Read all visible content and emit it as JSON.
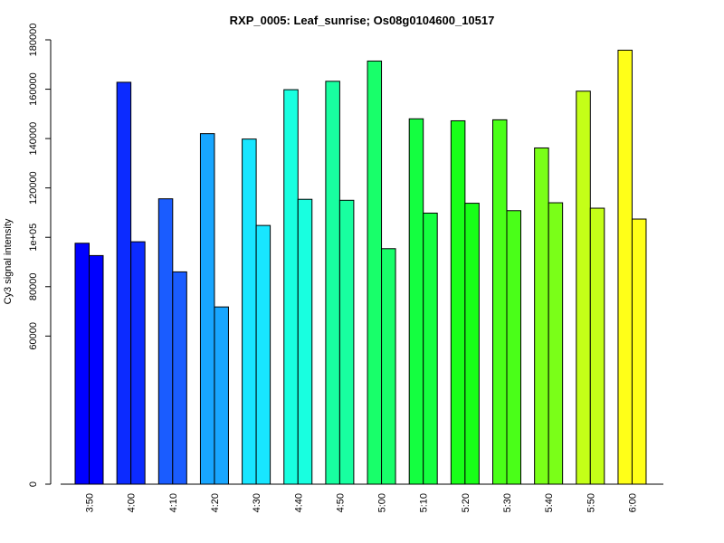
{
  "chart_data": {
    "type": "bar",
    "title": "RXP_0005: Leaf_sunrise; Os08g0104600_10517",
    "xlabel": "",
    "ylabel": "Cy3 signal intensity",
    "categories": [
      "3:50",
      "4:00",
      "4:10",
      "4:20",
      "4:30",
      "4:40",
      "4:50",
      "5:00",
      "5:10",
      "5:20",
      "5:30",
      "5:40",
      "5:50",
      "6:00"
    ],
    "series": [
      {
        "values": [
          97600,
          162800,
          115600,
          142000,
          139800,
          159800,
          163200,
          171400,
          148000,
          147200,
          147600,
          136200,
          159200,
          175800
        ]
      },
      {
        "values": [
          92600,
          98200,
          86000,
          71800,
          104800,
          115400,
          115000,
          95400,
          109800,
          113800,
          110800,
          114000,
          111800,
          107400
        ]
      }
    ],
    "bar_colors": [
      "#0000FF",
      "#0C2BFF",
      "#1A5CFF",
      "#18A6FF",
      "#18E6FF",
      "#18FFE0",
      "#18FFA0",
      "#18FF6A",
      "#14FF40",
      "#18FF18",
      "#4AFF18",
      "#7AFF18",
      "#C4FF18",
      "#FFFF18"
    ],
    "y_ticks": [
      {
        "value": 0,
        "label": "0"
      },
      {
        "value": 60000,
        "label": "60000"
      },
      {
        "value": 80000,
        "label": "80000"
      },
      {
        "value": 100000,
        "label": "1e+05"
      },
      {
        "value": 120000,
        "label": "120000"
      },
      {
        "value": 140000,
        "label": "140000"
      },
      {
        "value": 160000,
        "label": "160000"
      },
      {
        "value": 180000,
        "label": "180000"
      }
    ],
    "ylim": [
      0,
      180000
    ],
    "grid": false,
    "legend": "none"
  }
}
